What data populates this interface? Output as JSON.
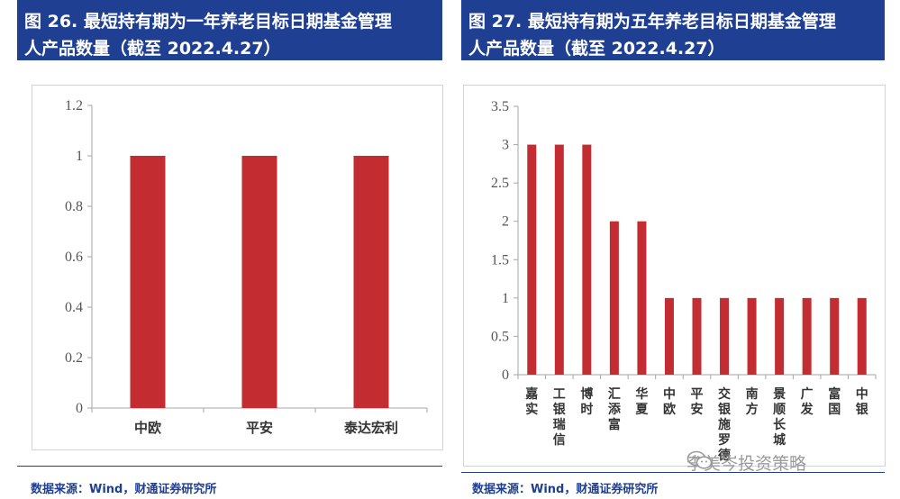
{
  "left": {
    "title_line1": "图 26. 最短持有期为一年养老目标日期基金管理",
    "title_line2": "人产品数量（截至 2022.4.27）",
    "source": "数据来源：Wind，财通证券研究所"
  },
  "right": {
    "title_line1": "图 27. 最短持有期为五年养老目标日期基金管理",
    "title_line2": "人产品数量（截至 2022.4.27）",
    "source": "数据来源：Wind，财通证券研究所"
  },
  "watermark": {
    "text": "李美岑投资策略",
    "icon": "wechat-icon"
  },
  "colors": {
    "bar": "#c32d31",
    "header": "#1f3f93",
    "axis": "#a6a6a6"
  },
  "chart_data": [
    {
      "type": "bar",
      "title": "图 26. 最短持有期为一年养老目标日期基金管理人产品数量（截至 2022.4.27）",
      "categories": [
        "中欧",
        "平安",
        "泰达宏利"
      ],
      "values": [
        1,
        1,
        1
      ],
      "ylim": [
        0,
        1.2
      ],
      "yticks": [
        "0",
        "0.2",
        "0.4",
        "0.6",
        "0.8",
        "1",
        "1.2"
      ],
      "grid": false,
      "legend": "none"
    },
    {
      "type": "bar",
      "title": "图 27. 最短持有期为五年养老目标日期基金管理人产品数量（截至 2022.4.27）",
      "categories": [
        "嘉实",
        "工银瑞信",
        "博时",
        "汇添富",
        "华夏",
        "中欧",
        "平安",
        "交银施罗德",
        "南方",
        "景顺长城",
        "广发",
        "富国",
        "中银"
      ],
      "values": [
        3,
        3,
        3,
        2,
        2,
        1,
        1,
        1,
        1,
        1,
        1,
        1,
        1
      ],
      "ylim": [
        0,
        3.5
      ],
      "yticks": [
        "0",
        "0.5",
        "1",
        "1.5",
        "2",
        "2.5",
        "3",
        "3.5"
      ],
      "grid": false,
      "legend": "none"
    }
  ]
}
